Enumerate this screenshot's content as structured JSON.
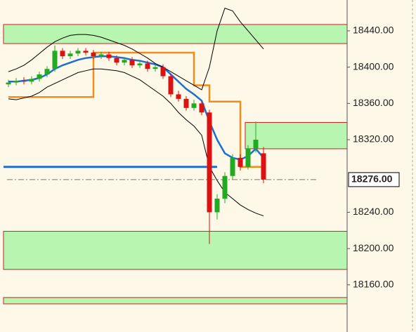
{
  "chart_data": {
    "type": "candlestick",
    "categories": [
      null,
      null,
      null,
      null,
      null,
      null,
      null,
      null,
      null,
      null,
      null,
      null,
      null,
      null,
      null,
      null,
      null,
      null,
      null,
      null,
      null,
      null,
      null,
      null,
      null,
      null,
      null,
      null,
      null,
      null,
      null,
      null,
      null,
      null
    ],
    "open": [
      18381,
      18383,
      18385,
      18384,
      18387,
      18392,
      18398,
      18418,
      18412,
      18415,
      18418,
      18416,
      18412,
      18414,
      18410,
      18405,
      18408,
      18402,
      18404,
      18398,
      18400,
      18390,
      18370,
      18365,
      18355,
      18360,
      18350,
      18240,
      18255,
      18280,
      18300,
      18290,
      18310,
      18305
    ],
    "high": [
      18386,
      18388,
      18389,
      18390,
      18395,
      18401,
      18424,
      18421,
      18418,
      18421,
      18421,
      18419,
      18417,
      18417,
      18413,
      18411,
      18411,
      18406,
      18407,
      18403,
      18403,
      18393,
      18374,
      18368,
      18364,
      18363,
      18353,
      18260,
      18284,
      18304,
      18304,
      18314,
      18340,
      18312
    ],
    "low": [
      18378,
      18380,
      18381,
      18381,
      18384,
      18389,
      18395,
      18409,
      18409,
      18412,
      18413,
      18409,
      18409,
      18407,
      18402,
      18402,
      18399,
      18399,
      18395,
      18395,
      18387,
      18367,
      18362,
      18352,
      18352,
      18347,
      18205,
      18232,
      18250,
      18276,
      18286,
      18287,
      18306,
      18272
    ],
    "close": [
      18383,
      18385,
      18384,
      18387,
      18392,
      18398,
      18418,
      18412,
      18415,
      18418,
      18416,
      18412,
      18414,
      18410,
      18405,
      18408,
      18402,
      18404,
      18398,
      18400,
      18390,
      18370,
      18365,
      18355,
      18360,
      18350,
      18240,
      18255,
      18280,
      18300,
      18290,
      18310,
      18320,
      18276
    ],
    "up_color": "#22aa22",
    "down_color": "#dd1111",
    "lines": [
      {
        "color": "#1e6fd0",
        "width": 2.5,
        "values": [
          18384,
          18384,
          18385,
          18386,
          18388,
          18392,
          18398,
          18402,
          18405,
          18408,
          18410,
          18411,
          18412,
          18412,
          18411,
          18410,
          18408,
          18407,
          18405,
          18403,
          18400,
          18392,
          18384,
          18376,
          18370,
          18363,
          18340,
          18320,
          18305,
          18300,
          18298,
          18302,
          18310,
          18300
        ]
      },
      {
        "color": "#f08c1e",
        "width": 2.5,
        "step": true,
        "values": [
          18367,
          18367,
          18367,
          18367,
          18367,
          18367,
          18367,
          18367,
          18367,
          18367,
          18367,
          18416,
          18416,
          18416,
          18416,
          18416,
          18416,
          18416,
          18416,
          18416,
          18416,
          18416,
          18416,
          18416,
          18380,
          18380,
          18362,
          18362,
          18362,
          18362,
          18290,
          18290,
          18290,
          18290
        ]
      },
      {
        "color": "#000000",
        "width": 1,
        "values": [
          18395,
          18398,
          18402,
          18408,
          18415,
          18422,
          18428,
          18432,
          18435,
          18436,
          18436,
          18435,
          18433,
          18430,
          18427,
          18424,
          18420,
          18415,
          18410,
          18404,
          18400,
          18395,
          18390,
          18385,
          18380,
          18375,
          18400,
          18440,
          18465,
          18462,
          18450,
          18440,
          18430,
          18420
        ]
      },
      {
        "color": "#000000",
        "width": 1,
        "values": [
          18365,
          18364,
          18366,
          18368,
          18372,
          18378,
          18382,
          18386,
          18390,
          18394,
          18396,
          18398,
          18398,
          18397,
          18396,
          18394,
          18390,
          18386,
          18380,
          18374,
          18368,
          18360,
          18350,
          18342,
          18335,
          18325,
          18290,
          18275,
          18262,
          18255,
          18248,
          18243,
          18239,
          18236
        ]
      }
    ],
    "zones": [
      {
        "top": 18447,
        "bottom": 18426,
        "start": 0
      },
      {
        "top": 18339,
        "bottom": 18310,
        "start": 31
      },
      {
        "top": 18219,
        "bottom": 18177,
        "start": 0
      },
      {
        "top": 18146,
        "bottom": 18139,
        "start": 0
      }
    ],
    "hline": {
      "value": 18290,
      "end": 27,
      "color": "#1e6fd0"
    },
    "last_price": {
      "value": 18276,
      "label": "18276.00"
    },
    "ylim": [
      18108,
      18474
    ],
    "yticks": [
      {
        "value": 18160,
        "label": "18160.00"
      },
      {
        "value": 18200,
        "label": "18200.00"
      },
      {
        "value": 18240,
        "label": "18240.00"
      },
      {
        "value": 18320,
        "label": "18320.00"
      },
      {
        "value": 18360,
        "label": "18360.00"
      },
      {
        "value": 18400,
        "label": "18400.00"
      },
      {
        "value": 18440,
        "label": "18440.00"
      }
    ]
  }
}
